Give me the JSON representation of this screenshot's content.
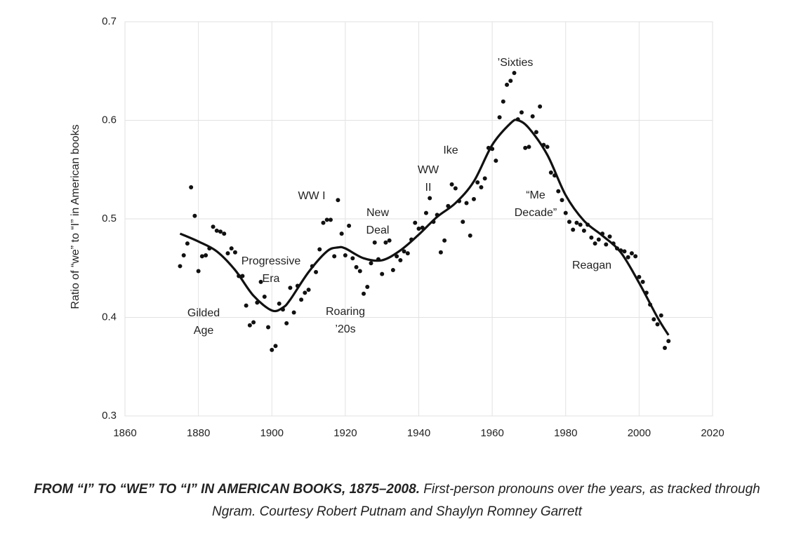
{
  "chart_data": {
    "type": "scatter",
    "ylabel": "Ratio of “we” to “I” in American books",
    "xlim": [
      1860,
      2020
    ],
    "xticks": [
      1860,
      1880,
      1900,
      1920,
      1940,
      1960,
      1980,
      2000,
      2020
    ],
    "ylim": [
      0.3,
      0.7
    ],
    "yticks": [
      0.3,
      0.4,
      0.5,
      0.6,
      0.7
    ],
    "grid": true,
    "color": "#111111",
    "x": [
      1875,
      1876,
      1877,
      1878,
      1879,
      1880,
      1881,
      1882,
      1883,
      1884,
      1885,
      1886,
      1887,
      1888,
      1889,
      1890,
      1891,
      1892,
      1893,
      1894,
      1895,
      1896,
      1897,
      1898,
      1899,
      1900,
      1901,
      1902,
      1903,
      1904,
      1905,
      1906,
      1907,
      1908,
      1909,
      1910,
      1911,
      1912,
      1913,
      1914,
      1915,
      1916,
      1917,
      1918,
      1919,
      1920,
      1921,
      1922,
      1923,
      1924,
      1925,
      1926,
      1927,
      1928,
      1929,
      1930,
      1931,
      1932,
      1933,
      1934,
      1935,
      1936,
      1937,
      1938,
      1939,
      1940,
      1941,
      1942,
      1943,
      1944,
      1945,
      1946,
      1947,
      1948,
      1949,
      1950,
      1951,
      1952,
      1953,
      1954,
      1955,
      1956,
      1957,
      1958,
      1959,
      1960,
      1961,
      1962,
      1963,
      1964,
      1965,
      1966,
      1967,
      1968,
      1969,
      1970,
      1971,
      1972,
      1973,
      1974,
      1975,
      1976,
      1977,
      1978,
      1979,
      1980,
      1981,
      1982,
      1983,
      1984,
      1985,
      1986,
      1987,
      1988,
      1989,
      1990,
      1991,
      1992,
      1993,
      1994,
      1995,
      1996,
      1997,
      1998,
      1999,
      2000,
      2001,
      2002,
      2003,
      2004,
      2005,
      2006,
      2007,
      2008
    ],
    "values": [
      0.452,
      0.463,
      0.475,
      0.532,
      0.503,
      0.447,
      0.462,
      0.463,
      0.47,
      0.492,
      0.488,
      0.487,
      0.485,
      0.465,
      0.47,
      0.466,
      0.442,
      0.442,
      0.412,
      0.392,
      0.395,
      0.415,
      0.436,
      0.421,
      0.39,
      0.367,
      0.371,
      0.414,
      0.408,
      0.394,
      0.43,
      0.405,
      0.432,
      0.418,
      0.425,
      0.428,
      0.452,
      0.446,
      0.469,
      0.496,
      0.499,
      0.499,
      0.462,
      0.519,
      0.485,
      0.463,
      0.493,
      0.46,
      0.451,
      0.447,
      0.424,
      0.431,
      0.455,
      0.476,
      0.459,
      0.444,
      0.476,
      0.478,
      0.448,
      0.462,
      0.458,
      0.467,
      0.465,
      0.479,
      0.496,
      0.49,
      0.491,
      0.506,
      0.521,
      0.497,
      0.504,
      0.466,
      0.478,
      0.513,
      0.535,
      0.531,
      0.518,
      0.497,
      0.516,
      0.483,
      0.52,
      0.537,
      0.532,
      0.541,
      0.572,
      0.571,
      0.559,
      0.603,
      0.619,
      0.636,
      0.64,
      0.648,
      0.601,
      0.608,
      0.572,
      0.573,
      0.604,
      0.588,
      0.614,
      0.575,
      0.573,
      0.547,
      0.544,
      0.528,
      0.519,
      0.506,
      0.497,
      0.489,
      0.496,
      0.494,
      0.488,
      0.494,
      0.481,
      0.475,
      0.479,
      0.485,
      0.474,
      0.482,
      0.475,
      0.47,
      0.468,
      0.467,
      0.461,
      0.465,
      0.462,
      0.441,
      0.436,
      0.425,
      0.413,
      0.398,
      0.393,
      0.402,
      0.369,
      0.376
    ],
    "trend": {
      "x": [
        1875,
        1880,
        1885,
        1890,
        1895,
        1900,
        1903,
        1905,
        1910,
        1915,
        1918,
        1920,
        1925,
        1930,
        1935,
        1940,
        1945,
        1950,
        1955,
        1960,
        1965,
        1967,
        1970,
        1975,
        1980,
        1985,
        1990,
        1995,
        2000,
        2005,
        2008
      ],
      "values": [
        0.485,
        0.477,
        0.467,
        0.448,
        0.422,
        0.407,
        0.41,
        0.418,
        0.446,
        0.467,
        0.471,
        0.47,
        0.46,
        0.458,
        0.468,
        0.484,
        0.502,
        0.516,
        0.538,
        0.575,
        0.597,
        0.6,
        0.592,
        0.565,
        0.524,
        0.498,
        0.483,
        0.466,
        0.435,
        0.4,
        0.382
      ]
    },
    "annotations": [
      {
        "lines": [
          "Gilded",
          "Age"
        ]
      },
      {
        "lines": [
          "Progressive",
          "Era"
        ]
      },
      {
        "lines": [
          "WW I"
        ]
      },
      {
        "lines": [
          "Roaring",
          "’20s"
        ]
      },
      {
        "lines": [
          "New",
          "Deal"
        ]
      },
      {
        "lines": [
          "WW",
          "II"
        ]
      },
      {
        "lines": [
          "Ike"
        ]
      },
      {
        "lines": [
          "’Sixties"
        ]
      },
      {
        "lines": [
          "“Me",
          "Decade”"
        ]
      },
      {
        "lines": [
          "Reagan"
        ]
      }
    ]
  },
  "caption": {
    "title": "FROM “I” TO “WE” TO “I” IN AMERICAN BOOKS, 1875–2008.",
    "text": "First-person pronouns over the years, as tracked through Ngram. Courtesy Robert Putnam and Shaylyn Romney Garrett"
  }
}
